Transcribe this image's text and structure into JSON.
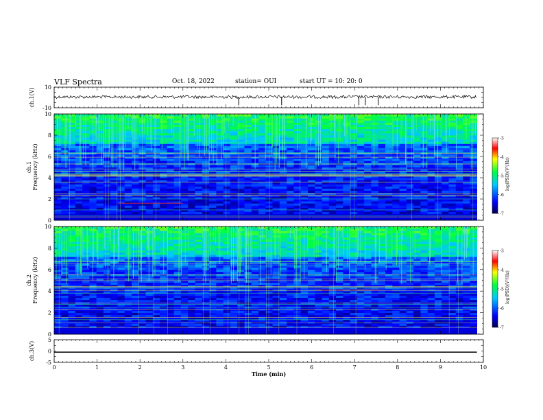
{
  "header": {
    "title": "VLF Spectra",
    "date": "Oct. 18, 2022",
    "station": "station= OUI",
    "start": "start  UT  =   10: 20: 0"
  },
  "chart_data": [
    {
      "type": "line",
      "panel": "ch1-waveform",
      "ylabel": "ch.1(V)",
      "ylim": [
        -10,
        10
      ],
      "ytick_labels": [
        "10",
        "-10"
      ],
      "baseline": 0.5,
      "color": "#000000"
    },
    {
      "type": "heatmap",
      "panel": "ch1-spectrogram",
      "ylabel": "ch.1\nFrequency (kHz)",
      "ylim": [
        0,
        10
      ],
      "ytick_labels": [
        "0",
        "2",
        "4",
        "6",
        "8",
        "10"
      ],
      "colorbar": {
        "label": "log(PSD)(V²/Hz)",
        "range": [
          -7,
          -3
        ],
        "ticks": [
          "-7",
          "-6",
          "-5",
          "-4",
          "-3"
        ]
      }
    },
    {
      "type": "heatmap",
      "panel": "ch2-spectrogram",
      "ylabel": "ch.2\nFrequency (kHz)",
      "ylim": [
        0,
        10
      ],
      "ytick_labels": [
        "0",
        "2",
        "4",
        "6",
        "8",
        "10"
      ],
      "colorbar": {
        "label": "log(PSD)(V²/Hz)",
        "range": [
          -7,
          -3
        ],
        "ticks": [
          "-7",
          "-6",
          "-5",
          "-4",
          "-3"
        ]
      }
    },
    {
      "type": "line",
      "panel": "ch3-waveform",
      "ylabel": "ch.3(V)",
      "ylim": [
        -5,
        5
      ],
      "ytick_labels": [
        "5",
        "0",
        "-5"
      ],
      "baseline": -0.5,
      "color": "#000000"
    }
  ],
  "xaxis": {
    "label": "Time (min)",
    "xlim": [
      0,
      10
    ],
    "tick_labels": [
      "0",
      "1",
      "2",
      "3",
      "4",
      "5",
      "6",
      "7",
      "8",
      "9",
      "10"
    ]
  }
}
